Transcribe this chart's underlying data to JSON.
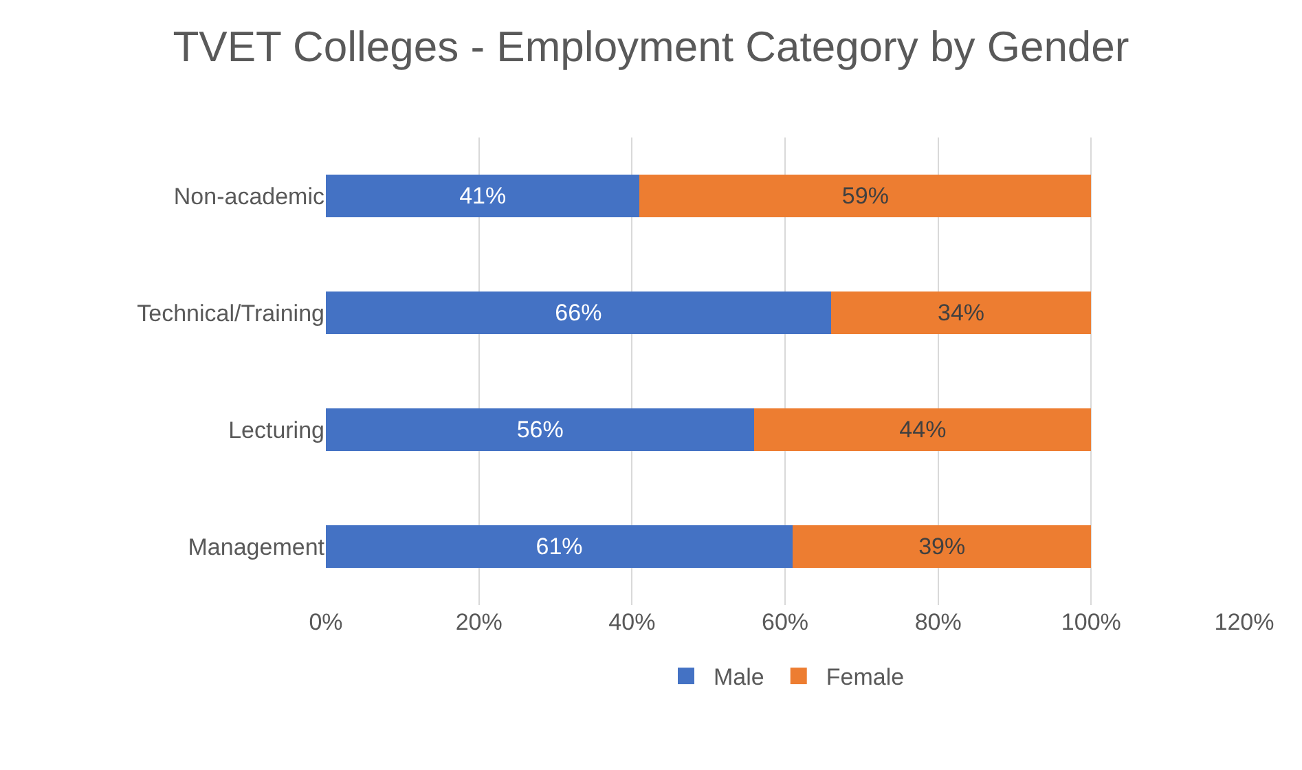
{
  "chart_data": {
    "type": "bar",
    "orientation": "horizontal",
    "stacked": true,
    "title": "TVET Colleges - Employment Category by Gender",
    "categories": [
      "Non-academic",
      "Technical/Training",
      "Lecturing",
      "Management"
    ],
    "series": [
      {
        "name": "Male",
        "color": "#4472c4",
        "values": [
          41,
          66,
          56,
          61
        ],
        "value_labels": [
          "41%",
          "66%",
          "56%",
          "61%"
        ]
      },
      {
        "name": "Female",
        "color": "#ed7d31",
        "values": [
          59,
          34,
          44,
          39
        ],
        "value_labels": [
          "59%",
          "34%",
          "44%",
          "39%"
        ]
      }
    ],
    "xlim": [
      0,
      120
    ],
    "xticks": [
      {
        "value": 0,
        "label": "0%"
      },
      {
        "value": 20,
        "label": "20%"
      },
      {
        "value": 40,
        "label": "40%"
      },
      {
        "value": 60,
        "label": "60%"
      },
      {
        "value": 80,
        "label": "80%"
      },
      {
        "value": 100,
        "label": "100%"
      },
      {
        "value": 120,
        "label": "120%"
      }
    ],
    "grid": "x",
    "legend": "bottom"
  }
}
